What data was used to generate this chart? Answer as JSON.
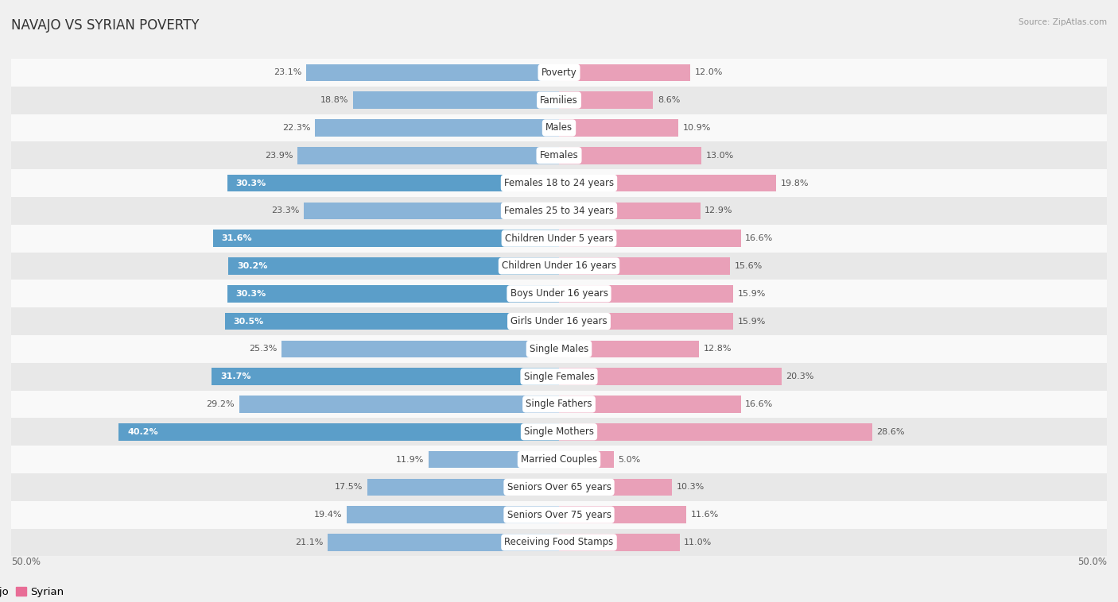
{
  "title": "NAVAJO VS SYRIAN POVERTY",
  "source": "Source: ZipAtlas.com",
  "categories": [
    "Poverty",
    "Families",
    "Males",
    "Females",
    "Females 18 to 24 years",
    "Females 25 to 34 years",
    "Children Under 5 years",
    "Children Under 16 years",
    "Boys Under 16 years",
    "Girls Under 16 years",
    "Single Males",
    "Single Females",
    "Single Fathers",
    "Single Mothers",
    "Married Couples",
    "Seniors Over 65 years",
    "Seniors Over 75 years",
    "Receiving Food Stamps"
  ],
  "navajo": [
    23.1,
    18.8,
    22.3,
    23.9,
    30.3,
    23.3,
    31.6,
    30.2,
    30.3,
    30.5,
    25.3,
    31.7,
    29.2,
    40.2,
    11.9,
    17.5,
    19.4,
    21.1
  ],
  "syrian": [
    12.0,
    8.6,
    10.9,
    13.0,
    19.8,
    12.9,
    16.6,
    15.6,
    15.9,
    15.9,
    12.8,
    20.3,
    16.6,
    28.6,
    5.0,
    10.3,
    11.6,
    11.0
  ],
  "navajo_color": "#8ab4d8",
  "syrian_color": "#e9a0b8",
  "navajo_highlight_color": "#5b9ec9",
  "syrian_highlight_color": "#e86d96",
  "highlight_threshold": 30.0,
  "max_value": 50.0,
  "bg_color": "#f0f0f0",
  "bar_bg_row_even": "#f9f9f9",
  "bar_bg_row_odd": "#e8e8e8",
  "label_fontsize": 8.5,
  "title_fontsize": 12,
  "legend_fontsize": 9.5,
  "axis_label_fontsize": 8.5,
  "value_fontsize": 8.0
}
